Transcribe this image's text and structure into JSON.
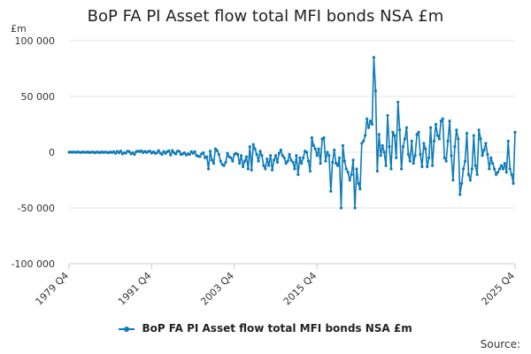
{
  "colors": {
    "series": "#0f7bb8",
    "grid": "#e6e6e6",
    "axis": "#cccccc"
  },
  "chart_data": {
    "type": "line",
    "title": "BoP FA PI Asset flow total MFI bonds NSA £m",
    "unit_label": "£m",
    "ylim": [
      -100000,
      100000
    ],
    "y_ticks": [
      100000,
      50000,
      0,
      -50000,
      -100000
    ],
    "y_tick_labels": [
      "100 000",
      "50 000",
      "0",
      "-50 000",
      "-100 000"
    ],
    "x_tick_labels": [
      "1979 Q4",
      "1991 Q4",
      "2003 Q4",
      "2015 Q4",
      "2025 Q4"
    ],
    "x_start": "1979 Q4",
    "x_end": "2025 Q4",
    "legend_position": "bottom",
    "series": [
      {
        "name": "BoP FA PI Asset flow total MFI bonds NSA £m",
        "values": [
          0,
          100,
          0,
          200,
          -200,
          300,
          0,
          -300,
          200,
          0,
          -200,
          300,
          -300,
          0,
          200,
          -500,
          200,
          0,
          -400,
          300,
          -200,
          100,
          0,
          -500,
          200,
          -300,
          500,
          -1000,
          800,
          -500,
          1000,
          -1500,
          -500,
          -800,
          1000,
          500,
          -1500,
          -500,
          -2000,
          500,
          1000,
          500,
          1200,
          -300,
          800,
          -200,
          600,
          1000,
          -800,
          300,
          -1000,
          -500,
          1500,
          -800,
          -2000,
          600,
          -1000,
          500,
          1200,
          -2500,
          1500,
          -500,
          -1500,
          1000,
          800,
          -2000,
          -1500,
          -500,
          -2500,
          -1500,
          -2000,
          500,
          -1000,
          500,
          -3000,
          -3500,
          -4000,
          -1500,
          -500,
          -5000,
          -4000,
          -15000,
          1000,
          -7000,
          -10000,
          3000,
          1500,
          -2000,
          -8000,
          -11000,
          -12000,
          -9000,
          -1000,
          -4000,
          -5000,
          -8000,
          -2000,
          -1000,
          -2000,
          -10000,
          -3000,
          -13000,
          -8000,
          -4000,
          -15000,
          5000,
          -16000,
          7000,
          3000,
          -2000,
          -8000,
          1000,
          -3000,
          -12000,
          -15000,
          -6000,
          -12000,
          -3000,
          -16000,
          -7000,
          -3000,
          -9000,
          -1000,
          2000,
          -3000,
          -5000,
          -10000,
          -8000,
          -2000,
          -7000,
          -9000,
          -15000,
          -3000,
          -20000,
          -5000,
          -10000,
          -5000,
          1000,
          0,
          -8000,
          -17000,
          13000,
          6000,
          3000,
          -3000,
          3000,
          -10000,
          12000,
          13000,
          -8000,
          0,
          -3000,
          -35000,
          -9000,
          2000,
          -10000,
          -12000,
          -5000,
          -50000,
          6000,
          -8000,
          -15000,
          -18000,
          -25000,
          -20000,
          -7000,
          -50000,
          -15000,
          -28000,
          -33000,
          8000,
          10000,
          15000,
          30000,
          22000,
          28000,
          25000,
          85000,
          55000,
          -17000,
          16000,
          -3000,
          6000,
          0,
          -12000,
          33000,
          5000,
          -15000,
          18000,
          15000,
          -5000,
          45000,
          20000,
          -15000,
          5000,
          12000,
          22000,
          -2000,
          -8000,
          10000,
          -10000,
          -3000,
          16000,
          18000,
          -2000,
          -13000,
          8000,
          3000,
          -13000,
          -5000,
          22000,
          -12000,
          10000,
          25000,
          15000,
          12000,
          28000,
          30000,
          -5000,
          -8000,
          10000,
          28000,
          -3000,
          -25000,
          5000,
          20000,
          12000,
          -38000,
          -28000,
          -15000,
          -8000,
          17000,
          -20000,
          -25000,
          -15000,
          15000,
          -12000,
          -20000,
          20000,
          12000,
          -3000,
          2000,
          8000,
          -2000,
          -15000,
          -5000,
          -10000,
          -15000,
          -20000,
          -18000,
          -15000,
          -12000,
          -15000,
          -10000,
          -18000,
          10000,
          -15000,
          -20000,
          -28000,
          18000
        ]
      }
    ]
  },
  "footer": {
    "source_label": "Source:"
  }
}
